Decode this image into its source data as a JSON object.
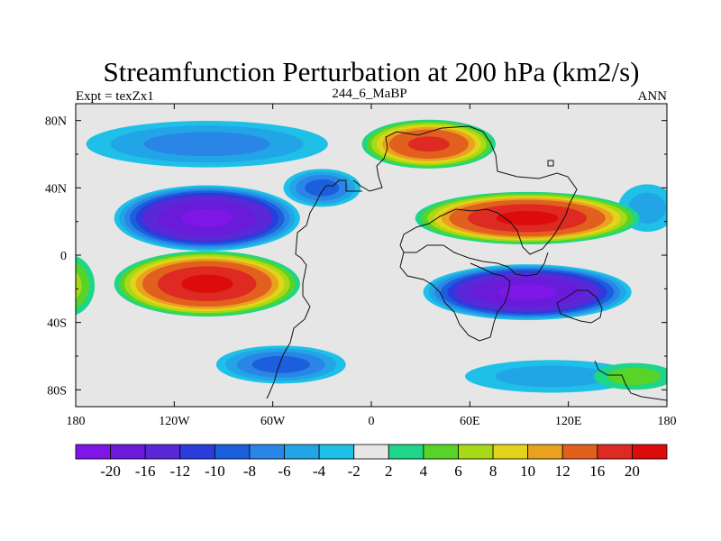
{
  "chart_data": {
    "type": "heatmap",
    "title": "Streamfunction Perturbation at 200 hPa (km2/s)",
    "subtitle_left": "Expt = texZx1",
    "subtitle_center": "244_6_MaBP",
    "subtitle_right": "ANN",
    "x_ticks": [
      "180",
      "120W",
      "60W",
      "0",
      "60E",
      "120E",
      "180"
    ],
    "y_ticks": [
      "80N",
      "40N",
      "0",
      "40S",
      "80S"
    ],
    "xlim": [
      -180,
      180
    ],
    "ylim": [
      -90,
      90
    ],
    "colorbar_labels": [
      "-20",
      "-16",
      "-12",
      "-10",
      "-8",
      "-6",
      "-4",
      "-2",
      "2",
      "4",
      "6",
      "8",
      "10",
      "12",
      "16",
      "20"
    ],
    "colorbar_colors": [
      "#7d16e6",
      "#6a1bd9",
      "#5a28d6",
      "#2b3cdc",
      "#1b5fdc",
      "#2a86e6",
      "#22a5e6",
      "#1ec0e8",
      "#e6e6e6",
      "#1ed58a",
      "#58d327",
      "#a7d916",
      "#e2d41a",
      "#eaa21e",
      "#e2601e",
      "#de2a22",
      "#dc0c0c"
    ],
    "blobs": [
      {
        "lon": -100,
        "lat": 22,
        "rlon": 58,
        "rlat": 20,
        "level": -20
      },
      {
        "lon": -30,
        "lat": 40,
        "rlon": 25,
        "rlat": 12,
        "level": -8
      },
      {
        "lon": 95,
        "lat": -22,
        "rlon": 65,
        "rlat": 17,
        "level": -20
      },
      {
        "lon": -100,
        "lat": 66,
        "rlon": 80,
        "rlat": 15,
        "level": -6
      },
      {
        "lon": -55,
        "lat": -65,
        "rlon": 42,
        "rlat": 12,
        "level": -8
      },
      {
        "lon": 110,
        "lat": -72,
        "rlon": 60,
        "rlat": 11,
        "level": -4
      },
      {
        "lon": 168,
        "lat": 28,
        "rlon": 20,
        "rlat": 16,
        "level": -4
      },
      {
        "lon": -100,
        "lat": -17,
        "rlon": 58,
        "rlat": 20,
        "level": 20
      },
      {
        "lon": 95,
        "lat": 22,
        "rlon": 70,
        "rlat": 16,
        "level": 20
      },
      {
        "lon": 35,
        "lat": 66,
        "rlon": 42,
        "rlat": 15,
        "level": 16
      },
      {
        "lon": -185,
        "lat": -18,
        "rlon": 18,
        "rlat": 20,
        "level": 6
      },
      {
        "lon": 160,
        "lat": -72,
        "rlon": 28,
        "rlat": 9,
        "level": 4
      }
    ]
  }
}
